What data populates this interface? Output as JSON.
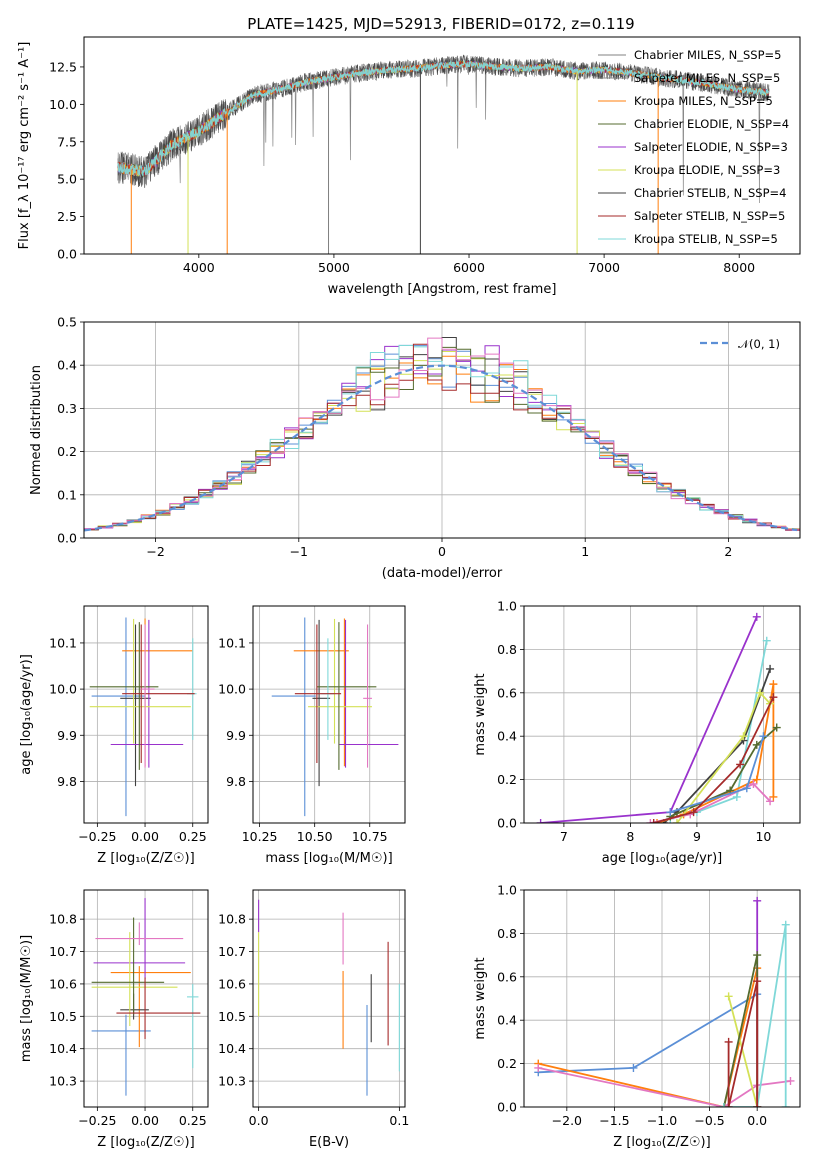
{
  "chart_data": [
    {
      "id": "spectrum",
      "type": "line",
      "title": "PLATE=1425, MJD=52913, FIBERID=0172, z=0.119",
      "xlabel": "wavelength [Angstrom, rest frame]",
      "ylabel": "Flux [f_λ 10⁻¹⁷ erg cm⁻² s⁻¹ A⁻¹]",
      "xlim": [
        3150,
        8450
      ],
      "ylim": [
        0,
        14.5
      ],
      "xticks": [
        4000,
        5000,
        6000,
        7000,
        8000
      ],
      "yticks": [
        0.0,
        2.5,
        5.0,
        7.5,
        10.0,
        12.5
      ],
      "ytick_labels": [
        "0.0",
        "2.5",
        "5.0",
        "7.5",
        "10.0",
        "12.5"
      ],
      "data_x": [
        3400,
        3600,
        3800,
        4000,
        4200,
        4400,
        4600,
        4800,
        5000,
        5200,
        5400,
        5600,
        5800,
        6000,
        6200,
        6400,
        6600,
        6800,
        7000,
        7200,
        7400,
        7600,
        7800,
        8000,
        8200
      ],
      "data_y": [
        5.8,
        5.5,
        7.3,
        8.2,
        9.4,
        10.6,
        11.0,
        11.5,
        11.8,
        12.1,
        12.3,
        12.4,
        12.6,
        12.7,
        12.5,
        12.4,
        12.5,
        12.2,
        12.3,
        12.1,
        11.8,
        11.6,
        11.3,
        11.0,
        10.8
      ],
      "legend": {
        "placement": "upper right",
        "entries": [
          {
            "name": "Chabrier MILES, N_SSP=5",
            "color": "#808080"
          },
          {
            "name": "Salpeter MILES, N_SSP=5",
            "color": "#808080"
          },
          {
            "name": "Kroupa MILES, N_SSP=5",
            "color": "#ff7f0e"
          },
          {
            "name": "Chabrier ELODIE, N_SSP=4",
            "color": "#556b2f"
          },
          {
            "name": "Salpeter ELODIE, N_SSP=3",
            "color": "#9932cc"
          },
          {
            "name": "Kroupa ELODIE, N_SSP=3",
            "color": "#d4e157"
          },
          {
            "name": "Chabrier STELIB, N_SSP=4",
            "color": "#404040"
          },
          {
            "name": "Salpeter STELIB, N_SSP=5",
            "color": "#a52a2a"
          },
          {
            "name": "Kroupa STELIB, N_SSP=5",
            "color": "#7fd8d8"
          }
        ]
      }
    },
    {
      "id": "residuals",
      "type": "histogram",
      "xlabel": "(data-model)/error",
      "ylabel": "Normed distribution",
      "xlim": [
        -2.5,
        2.5
      ],
      "ylim": [
        0,
        0.5
      ],
      "xticks": [
        -2,
        -1,
        0,
        1,
        2
      ],
      "yticks": [
        0.0,
        0.1,
        0.2,
        0.3,
        0.4,
        0.5
      ],
      "ytick_labels": [
        "0.0",
        "0.1",
        "0.2",
        "0.3",
        "0.4",
        "0.5"
      ],
      "bin_width": 0.1,
      "legend": {
        "placement": "upper right",
        "entries": [
          {
            "name": "𝒩(0, 1)",
            "color": "#5b8fd6",
            "style": "dashed"
          }
        ]
      }
    },
    {
      "id": "age-vs-Z",
      "type": "errorbar",
      "xlabel": "Z [log₁₀(Z/Z☉)]",
      "ylabel": "age [log₁₀(age/yr)]",
      "xlim": [
        -0.32,
        0.33
      ],
      "ylim": [
        9.71,
        10.18
      ],
      "xticks": [
        -0.25,
        0.0,
        0.25
      ],
      "xtick_labels": [
        "−0.25",
        "0.00",
        "0.25"
      ],
      "yticks": [
        9.8,
        9.9,
        10.0,
        10.1
      ],
      "ytick_labels": [
        "9.8",
        "9.9",
        "10.0",
        "10.1"
      ],
      "points": [
        {
          "x": -0.1,
          "xerr": [
            0.18,
            0.1
          ],
          "y": 9.985,
          "yerr": [
            0.26,
            0.17
          ],
          "color": "#5b8fd6"
        },
        {
          "x": 0.0,
          "xerr": [
            0.12,
            0.25
          ],
          "y": 10.083,
          "yerr": [
            0.25,
            0.07
          ],
          "color": "#ff7f0e"
        },
        {
          "x": -0.05,
          "xerr": [
            0.08,
            0.08
          ],
          "y": 9.98,
          "yerr": [
            0.19,
            0.16
          ],
          "color": "#404040"
        },
        {
          "x": 0.02,
          "xerr": [
            0.2,
            0.18
          ],
          "y": 9.88,
          "yerr": [
            0.05,
            0.27
          ],
          "color": "#9932cc"
        },
        {
          "x": -0.06,
          "xerr": [
            0.23,
            0.3
          ],
          "y": 9.962,
          "yerr": [
            0.08,
            0.19
          ],
          "color": "#d4e157"
        },
        {
          "x": -0.03,
          "xerr": [
            0.26,
            0.1
          ],
          "y": 10.005,
          "yerr": [
            0.18,
            0.14
          ],
          "color": "#556b2f"
        },
        {
          "x": 0.25,
          "xerr": [
            0.03,
            0.02
          ],
          "y": 9.99,
          "yerr": [
            0.1,
            0.12
          ],
          "color": "#7fd8d8"
        },
        {
          "x": -0.02,
          "xerr": [
            0.1,
            0.28
          ],
          "y": 9.99,
          "yerr": [
            0.15,
            0.15
          ],
          "color": "#a52a2a"
        },
        {
          "x": 0.0,
          "xerr": [
            0.02,
            0.05
          ],
          "y": 10.0,
          "yerr": [
            0.17,
            0.14
          ],
          "color": "#e377c2"
        }
      ]
    },
    {
      "id": "age-vs-mass",
      "type": "errorbar",
      "xlabel": "mass [log₁₀(M/M☉)]",
      "xlim": [
        10.22,
        10.91
      ],
      "ylim": [
        9.71,
        10.18
      ],
      "xticks": [
        10.25,
        10.5,
        10.75
      ],
      "xtick_labels": [
        "10.25",
        "10.50",
        "10.75"
      ],
      "yticks": [
        9.8,
        9.9,
        10.0,
        10.1
      ],
      "ytick_labels": [
        "9.8",
        "9.9",
        "10.0",
        "10.1"
      ],
      "points": [
        {
          "x": 10.455,
          "xerr": [
            0.15,
            0.05
          ],
          "y": 9.985,
          "yerr": [
            0.26,
            0.17
          ],
          "color": "#5b8fd6"
        },
        {
          "x": 10.635,
          "xerr": [
            0.23,
            0.02
          ],
          "y": 10.083,
          "yerr": [
            0.25,
            0.07
          ],
          "color": "#ff7f0e"
        },
        {
          "x": 10.52,
          "xerr": [
            0.03,
            0.05
          ],
          "y": 9.98,
          "yerr": [
            0.19,
            0.17
          ],
          "color": "#404040"
        },
        {
          "x": 10.64,
          "xerr": [
            0.03,
            0.24
          ],
          "y": 9.88,
          "yerr": [
            0.05,
            0.27
          ],
          "color": "#9932cc"
        },
        {
          "x": 10.59,
          "xerr": [
            0.12,
            0.17
          ],
          "y": 9.962,
          "yerr": [
            0.08,
            0.19
          ],
          "color": "#d4e157"
        },
        {
          "x": 10.61,
          "xerr": [
            0.1,
            0.17
          ],
          "y": 10.005,
          "yerr": [
            0.18,
            0.14
          ],
          "color": "#556b2f"
        },
        {
          "x": 10.56,
          "xerr": [
            0.03,
            0.03
          ],
          "y": 9.99,
          "yerr": [
            0.1,
            0.12
          ],
          "color": "#7fd8d8"
        },
        {
          "x": 10.51,
          "xerr": [
            0.1,
            0.11
          ],
          "y": 9.99,
          "yerr": [
            0.15,
            0.15
          ],
          "color": "#a52a2a"
        },
        {
          "x": 10.74,
          "xerr": [
            0.02,
            0.02
          ],
          "y": 9.98,
          "yerr": [
            0.15,
            0.16
          ],
          "color": "#e377c2"
        }
      ]
    },
    {
      "id": "mass-weight-vs-age",
      "type": "line",
      "xlabel": "age [log₁₀(age/yr)]",
      "ylabel": "mass weight",
      "xlim": [
        6.4,
        10.55
      ],
      "ylim": [
        0,
        1.0
      ],
      "xticks": [
        7,
        8,
        9,
        10
      ],
      "yticks": [
        0.0,
        0.2,
        0.4,
        0.6,
        0.8,
        1.0
      ],
      "ytick_labels": [
        "0.0",
        "0.2",
        "0.4",
        "0.6",
        "0.8",
        "1.0"
      ],
      "series": [
        {
          "color": "#9932cc",
          "x": [
            6.65,
            8.6,
            9.9
          ],
          "y": [
            0.0,
            0.05,
            0.95
          ]
        },
        {
          "color": "#7fd8d8",
          "x": [
            8.6,
            9.0,
            9.6,
            10.05
          ],
          "y": [
            0.02,
            0.05,
            0.12,
            0.84
          ]
        },
        {
          "color": "#404040",
          "x": [
            8.5,
            8.7,
            9.7,
            10.1
          ],
          "y": [
            0.0,
            0.05,
            0.38,
            0.71
          ]
        },
        {
          "color": "#ff7f0e",
          "x": [
            8.4,
            8.8,
            9.9,
            10.15,
            10.15
          ],
          "y": [
            0.0,
            0.04,
            0.2,
            0.64,
            0.12
          ]
        },
        {
          "color": "#e377c2",
          "x": [
            8.3,
            8.9,
            9.85,
            10.1
          ],
          "y": [
            0.0,
            0.04,
            0.18,
            0.1
          ]
        },
        {
          "color": "#556b2f",
          "x": [
            8.6,
            9.5,
            9.9,
            10.2
          ],
          "y": [
            0.03,
            0.15,
            0.36,
            0.44
          ]
        },
        {
          "color": "#d4e157",
          "x": [
            8.7,
            9.7,
            9.95,
            10.1
          ],
          "y": [
            0.0,
            0.4,
            0.6,
            0.55
          ]
        },
        {
          "color": "#5b8fd6",
          "x": [
            8.6,
            9.75,
            10.0
          ],
          "y": [
            0.05,
            0.16,
            0.4
          ]
        },
        {
          "color": "#a52a2a",
          "x": [
            8.35,
            8.95,
            9.65,
            10.15
          ],
          "y": [
            0.0,
            0.05,
            0.27,
            0.58
          ]
        }
      ]
    },
    {
      "id": "mass-vs-Z",
      "type": "errorbar",
      "xlabel": "Z [log₁₀(Z/Z☉)]",
      "ylabel": "mass [log₁₀(M/M☉)]",
      "xlim": [
        -0.32,
        0.33
      ],
      "ylim": [
        10.22,
        10.89
      ],
      "xticks": [
        -0.25,
        0.0,
        0.25
      ],
      "xtick_labels": [
        "−0.25",
        "0.00",
        "0.25"
      ],
      "yticks": [
        10.3,
        10.4,
        10.5,
        10.6,
        10.7,
        10.8
      ],
      "ytick_labels": [
        "10.3",
        "10.4",
        "10.5",
        "10.6",
        "10.7",
        "10.8"
      ],
      "points": [
        {
          "x": -0.1,
          "xerr": [
            0.18,
            0.13
          ],
          "y": 10.455,
          "yerr": [
            0.2,
            0.05
          ],
          "color": "#5b8fd6"
        },
        {
          "x": -0.03,
          "xerr": [
            0.15,
            0.27
          ],
          "y": 10.635,
          "yerr": [
            0.23,
            0.02
          ],
          "color": "#ff7f0e"
        },
        {
          "x": -0.06,
          "xerr": [
            0.07,
            0.08
          ],
          "y": 10.52,
          "yerr": [
            0.03,
            0.05
          ],
          "color": "#404040"
        },
        {
          "x": 0.0,
          "xerr": [
            0.27,
            0.21
          ],
          "y": 10.665,
          "yerr": [
            0.05,
            0.2
          ],
          "color": "#9932cc"
        },
        {
          "x": -0.08,
          "xerr": [
            0.2,
            0.25
          ],
          "y": 10.59,
          "yerr": [
            0.12,
            0.17
          ],
          "color": "#d4e157"
        },
        {
          "x": -0.06,
          "xerr": [
            0.22,
            0.16
          ],
          "y": 10.605,
          "yerr": [
            0.1,
            0.2
          ],
          "color": "#556b2f"
        },
        {
          "x": 0.25,
          "xerr": [
            0.03,
            0.03
          ],
          "y": 10.56,
          "yerr": [
            0.22,
            0.04
          ],
          "color": "#7fd8d8"
        },
        {
          "x": 0.0,
          "xerr": [
            0.15,
            0.29
          ],
          "y": 10.51,
          "yerr": [
            0.08,
            0.11
          ],
          "color": "#a52a2a"
        },
        {
          "x": -0.03,
          "xerr": [
            0.23,
            0.23
          ],
          "y": 10.74,
          "yerr": [
            0.02,
            0.05
          ],
          "color": "#e377c2"
        }
      ]
    },
    {
      "id": "mass-vs-EBV",
      "type": "errorbar",
      "xlabel": "E(B-V)",
      "xlim": [
        -0.004,
        0.104
      ],
      "ylim": [
        10.22,
        10.89
      ],
      "xticks": [
        0.0,
        0.1
      ],
      "xtick_labels": [
        "0.0",
        "0.1"
      ],
      "yticks": [
        10.3,
        10.4,
        10.5,
        10.6,
        10.7,
        10.8
      ],
      "ytick_labels": [
        "10.3",
        "10.4",
        "10.5",
        "10.6",
        "10.7",
        "10.8"
      ],
      "points": [
        {
          "x": 0.077,
          "y": 10.455,
          "yerr": [
            0.2,
            0.08
          ],
          "color": "#5b8fd6"
        },
        {
          "x": 0.06,
          "y": 10.4,
          "yerr": [
            0.0,
            0.24
          ],
          "color": "#ff7f0e"
        },
        {
          "x": 0.08,
          "y": 10.52,
          "yerr": [
            0.1,
            0.11
          ],
          "color": "#404040"
        },
        {
          "x": 0.0,
          "y": 10.8,
          "yerr": [
            0.04,
            0.06
          ],
          "color": "#9932cc"
        },
        {
          "x": 0.0,
          "y": 10.6,
          "yerr": [
            0.1,
            0.16
          ],
          "color": "#d4e157"
        },
        {
          "x": 0.1,
          "y": 10.5,
          "yerr": [
            0.17,
            0.1
          ],
          "color": "#7fd8d8"
        },
        {
          "x": 0.092,
          "y": 10.58,
          "yerr": [
            0.17,
            0.15
          ],
          "color": "#a52a2a"
        },
        {
          "x": 0.06,
          "y": 10.74,
          "yerr": [
            0.08,
            0.08
          ],
          "color": "#e377c2"
        }
      ]
    },
    {
      "id": "mass-weight-vs-Z",
      "type": "line",
      "xlabel": "Z [log₁₀(Z/Z☉)]",
      "ylabel": "mass weight",
      "xlim": [
        -2.45,
        0.45
      ],
      "ylim": [
        0,
        1.0
      ],
      "xticks": [
        -2.0,
        -1.5,
        -1.0,
        -0.5,
        0.0
      ],
      "xtick_labels": [
        "−2.0",
        "−1.5",
        "−1.0",
        "−0.5",
        "0.0"
      ],
      "yticks": [
        0.0,
        0.2,
        0.4,
        0.6,
        0.8,
        1.0
      ],
      "ytick_labels": [
        "0.0",
        "0.2",
        "0.4",
        "0.6",
        "0.8",
        "1.0"
      ],
      "series": [
        {
          "color": "#5b8fd6",
          "x": [
            -2.3,
            -1.3,
            0.0,
            0.0
          ],
          "y": [
            0.16,
            0.18,
            0.52,
            0.0
          ]
        },
        {
          "color": "#ff7f0e",
          "x": [
            -2.3,
            -0.35,
            0.0,
            0.0
          ],
          "y": [
            0.2,
            0.0,
            0.64,
            0.0
          ]
        },
        {
          "color": "#e377c2",
          "x": [
            -2.3,
            -0.35,
            0.0,
            0.35
          ],
          "y": [
            0.18,
            0.0,
            0.1,
            0.12
          ]
        },
        {
          "color": "#9932cc",
          "x": [
            0.0,
            0.0,
            0.0
          ],
          "y": [
            0.0,
            0.95,
            0.0
          ]
        },
        {
          "color": "#d4e157",
          "x": [
            -0.3,
            0.0
          ],
          "y": [
            0.51,
            0.0
          ]
        },
        {
          "color": "#556b2f",
          "x": [
            -0.35,
            0.0,
            0.0
          ],
          "y": [
            0.0,
            0.7,
            0.0
          ]
        },
        {
          "color": "#7fd8d8",
          "x": [
            -0.35,
            0.0,
            0.3,
            0.3
          ],
          "y": [
            0.0,
            0.0,
            0.84,
            0.0
          ]
        },
        {
          "color": "#a52a2a",
          "x": [
            -0.3,
            -0.3,
            0.0,
            0.0
          ],
          "y": [
            0.3,
            0.0,
            0.58,
            0.0
          ]
        }
      ]
    }
  ]
}
